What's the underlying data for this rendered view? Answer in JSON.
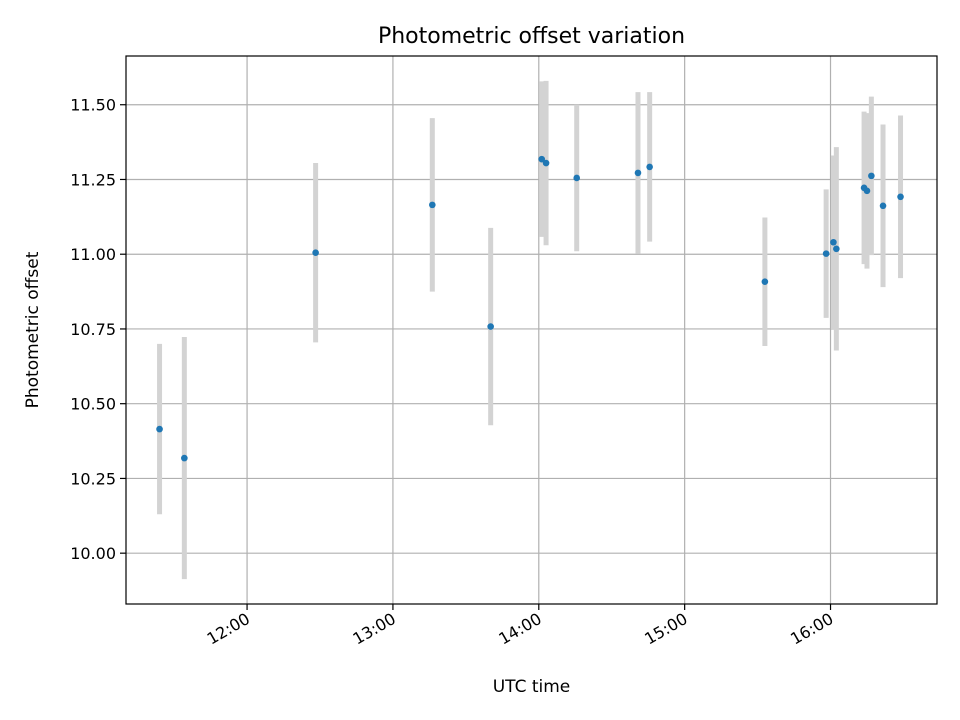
{
  "chart_data": {
    "type": "scatter",
    "title": "Photometric offset variation",
    "xlabel": "UTC time",
    "ylabel": "Photometric offset",
    "x_unit": "hours (UTC)",
    "xlim": [
      11.17,
      16.73
    ],
    "ylim": [
      9.83,
      11.663
    ],
    "x_ticks": [
      {
        "value": 12,
        "label": "12:00"
      },
      {
        "value": 13,
        "label": "13:00"
      },
      {
        "value": 14,
        "label": "14:00"
      },
      {
        "value": 15,
        "label": "15:00"
      },
      {
        "value": 16,
        "label": "16:00"
      }
    ],
    "y_ticks": [
      {
        "value": 10.0,
        "label": "10.00"
      },
      {
        "value": 10.25,
        "label": "10.25"
      },
      {
        "value": 10.5,
        "label": "10.50"
      },
      {
        "value": 10.75,
        "label": "10.75"
      },
      {
        "value": 11.0,
        "label": "11.00"
      },
      {
        "value": 11.25,
        "label": "11.25"
      },
      {
        "value": 11.5,
        "label": "11.50"
      }
    ],
    "grid": true,
    "marker_color": "#1f77b4",
    "errorbar_color": "#d3d3d3",
    "points": [
      {
        "x": 11.4,
        "y": 10.415,
        "err": 0.285
      },
      {
        "x": 11.57,
        "y": 10.318,
        "err": 0.405
      },
      {
        "x": 12.47,
        "y": 11.005,
        "err": 0.3
      },
      {
        "x": 13.27,
        "y": 11.165,
        "err": 0.29
      },
      {
        "x": 13.67,
        "y": 10.758,
        "err": 0.33
      },
      {
        "x": 14.02,
        "y": 11.318,
        "err": 0.26
      },
      {
        "x": 14.05,
        "y": 11.305,
        "err": 0.275
      },
      {
        "x": 14.26,
        "y": 11.255,
        "err": 0.245
      },
      {
        "x": 14.68,
        "y": 11.272,
        "err": 0.27
      },
      {
        "x": 14.76,
        "y": 11.292,
        "err": 0.25
      },
      {
        "x": 15.55,
        "y": 10.908,
        "err": 0.215
      },
      {
        "x": 15.97,
        "y": 11.002,
        "err": 0.215
      },
      {
        "x": 16.02,
        "y": 11.04,
        "err": 0.29
      },
      {
        "x": 16.04,
        "y": 11.018,
        "err": 0.34
      },
      {
        "x": 16.23,
        "y": 11.222,
        "err": 0.255
      },
      {
        "x": 16.25,
        "y": 11.212,
        "err": 0.26
      },
      {
        "x": 16.28,
        "y": 11.262,
        "err": 0.265
      },
      {
        "x": 16.36,
        "y": 11.162,
        "err": 0.272
      },
      {
        "x": 16.48,
        "y": 11.192,
        "err": 0.272
      }
    ]
  }
}
